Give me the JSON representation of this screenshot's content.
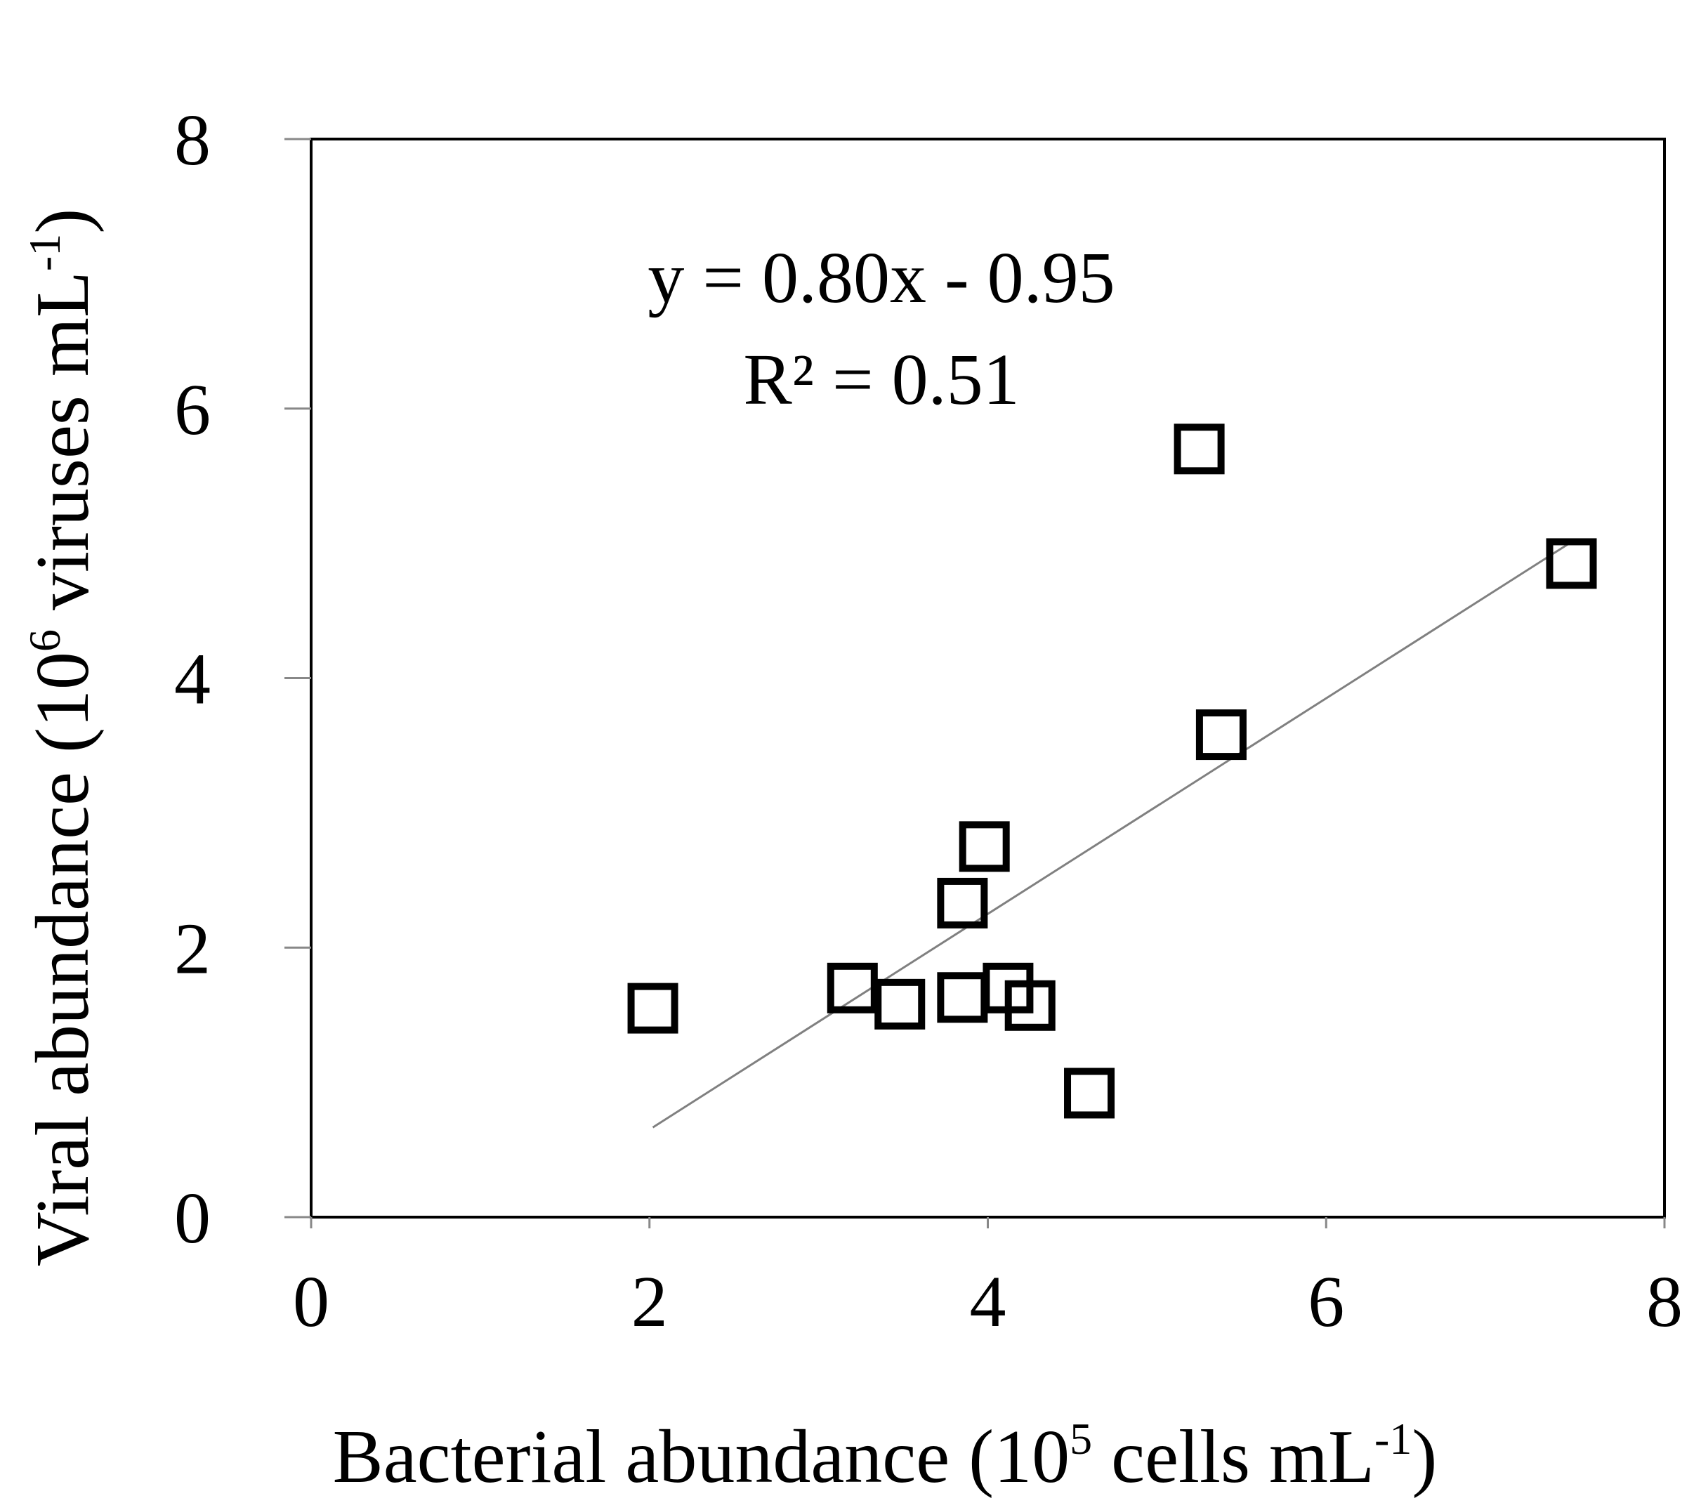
{
  "chart_data": {
    "type": "scatter",
    "xlabel": {
      "main": "Bacterial abundance (10",
      "exp": "5",
      "unit": " cells mL",
      "unit_exp": "-1",
      "close": ")"
    },
    "ylabel": {
      "main": "Viral abundance (10",
      "exp": "6",
      "unit": " viruses mL",
      "unit_exp": "-1",
      "close": ")"
    },
    "xlim": [
      0,
      8
    ],
    "ylim": [
      0,
      8
    ],
    "xticks": [
      0,
      2,
      4,
      6,
      8
    ],
    "yticks": [
      0,
      2,
      4,
      6,
      8
    ],
    "marker": "open-square",
    "marker_color": "#000000",
    "trendline_color": "#808080",
    "grid": false,
    "points": [
      {
        "x": 2.02,
        "y": 1.55
      },
      {
        "x": 3.2,
        "y": 1.7
      },
      {
        "x": 3.48,
        "y": 1.58
      },
      {
        "x": 3.85,
        "y": 1.63
      },
      {
        "x": 3.85,
        "y": 2.33
      },
      {
        "x": 3.98,
        "y": 2.75
      },
      {
        "x": 4.12,
        "y": 1.7
      },
      {
        "x": 4.25,
        "y": 1.57
      },
      {
        "x": 4.6,
        "y": 0.92
      },
      {
        "x": 5.25,
        "y": 5.7
      },
      {
        "x": 5.38,
        "y": 3.58
      },
      {
        "x": 7.45,
        "y": 4.85
      }
    ],
    "trendline": {
      "slope": 0.8,
      "intercept": -0.95,
      "x_range": [
        2.02,
        7.45
      ],
      "equation": "y = 0.80x - 0.95",
      "r2": "R² = 0.51"
    }
  }
}
